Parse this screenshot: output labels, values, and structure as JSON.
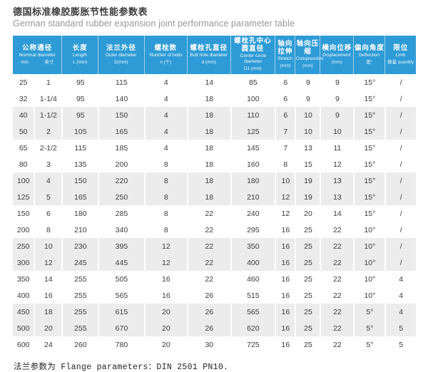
{
  "page": {
    "title_zh": "德国标准橡胶膨胀节性能参数表",
    "title_en": "German standard rubber expansion joint performance parameter table",
    "footer_note": "法兰参数为 Flange parameters：DIN 2501 PN10."
  },
  "colors": {
    "header_bg": "#2e9bd6",
    "row_shaded": "#ececec",
    "body_text": "#3a3a3a"
  },
  "table": {
    "columns": [
      {
        "zh": "公称通径",
        "en": "Nominal diameter",
        "unit": [
          "mm",
          "英寸"
        ],
        "colspan": 2
      },
      {
        "zh": "长度",
        "en": "Length",
        "unit": "L (mm)"
      },
      {
        "zh": "法兰外径",
        "en": "Outer diameter",
        "unit": "D(mm)"
      },
      {
        "zh": "螺栓数",
        "en": "Number of bolts",
        "unit": "n (个)"
      },
      {
        "zh": "螺栓孔直径",
        "en": "Bolt hole diameter",
        "unit": "d (mm)"
      },
      {
        "zh": "螺栓孔中心圆直径",
        "en": "Center circle diameter",
        "unit": "D1 (mm)"
      },
      {
        "zh": "轴向拉伸",
        "en": "Stretch",
        "unit": "(mm)"
      },
      {
        "zh": "轴向压缩",
        "en": "Compression",
        "unit": "(mm)"
      },
      {
        "zh": "横向位移",
        "en": "Displacement",
        "unit": "(mm)"
      },
      {
        "zh": "偏向角度",
        "en": "Deflection",
        "unit": "度°"
      },
      {
        "zh": "限位",
        "en": "Limit",
        "unit": "数量 quantity"
      }
    ],
    "rows": [
      [
        "25",
        "1",
        "95",
        "115",
        "4",
        "14",
        "85",
        "6",
        "9",
        "9",
        "15°",
        "/"
      ],
      [
        "32",
        "1-1/4",
        "95",
        "140",
        "4",
        "18",
        "100",
        "6",
        "9",
        "9",
        "15°",
        "/"
      ],
      [
        "40",
        "1-1/2",
        "95",
        "150",
        "4",
        "18",
        "110",
        "6",
        "10",
        "9",
        "15°",
        "/"
      ],
      [
        "50",
        "2",
        "105",
        "165",
        "4",
        "18",
        "125",
        "7",
        "10",
        "10",
        "15°",
        "/"
      ],
      [
        "65",
        "2-1/2",
        "115",
        "185",
        "4",
        "18",
        "145",
        "7",
        "13",
        "11",
        "15°",
        "/"
      ],
      [
        "80",
        "3",
        "135",
        "200",
        "8",
        "18",
        "160",
        "8",
        "15",
        "12",
        "15°",
        "/"
      ],
      [
        "100",
        "4",
        "150",
        "220",
        "8",
        "18",
        "180",
        "10",
        "19",
        "13",
        "15°",
        "/"
      ],
      [
        "125",
        "5",
        "165",
        "250",
        "8",
        "18",
        "210",
        "12",
        "19",
        "13",
        "15°",
        "/"
      ],
      [
        "150",
        "6",
        "180",
        "285",
        "8",
        "22",
        "240",
        "12",
        "20",
        "14",
        "15°",
        "/"
      ],
      [
        "200",
        "8",
        "210",
        "340",
        "8",
        "22",
        "295",
        "16",
        "25",
        "22",
        "10°",
        "/"
      ],
      [
        "250",
        "10",
        "230",
        "395",
        "12",
        "22",
        "350",
        "16",
        "25",
        "22",
        "10°",
        "/"
      ],
      [
        "300",
        "12",
        "245",
        "445",
        "12",
        "22",
        "400",
        "16",
        "25",
        "22",
        "10°",
        "/"
      ],
      [
        "350",
        "14",
        "255",
        "505",
        "16",
        "22",
        "460",
        "16",
        "25",
        "22",
        "10°",
        "4"
      ],
      [
        "400",
        "16",
        "255",
        "565",
        "16",
        "26",
        "515",
        "16",
        "25",
        "22",
        "10°",
        "4"
      ],
      [
        "450",
        "18",
        "255",
        "615",
        "20",
        "26",
        "565",
        "16",
        "25",
        "22",
        "5°",
        "4"
      ],
      [
        "500",
        "20",
        "255",
        "670",
        "20",
        "26",
        "620",
        "16",
        "25",
        "22",
        "5°",
        "5"
      ],
      [
        "600",
        "24",
        "260",
        "780",
        "20",
        "30",
        "725",
        "16",
        "25",
        "22",
        "5°",
        "5"
      ]
    ]
  }
}
